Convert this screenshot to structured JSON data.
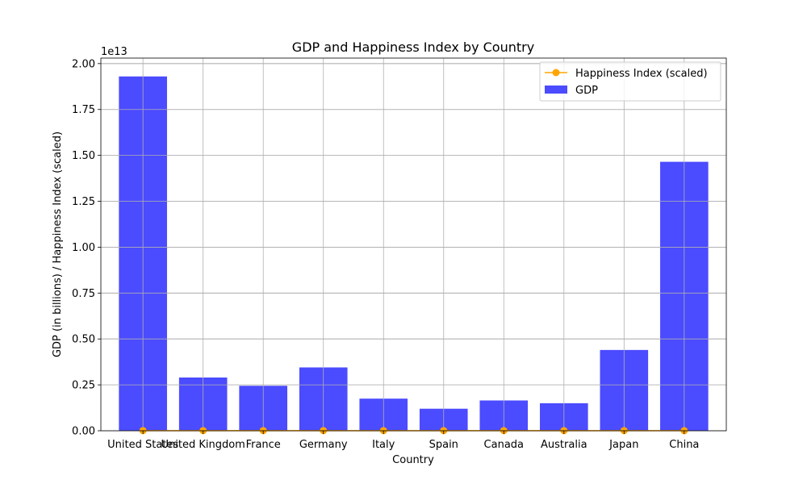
{
  "chart_data": {
    "type": "bar",
    "title": "GDP and Happiness Index by Country",
    "xlabel": "Country",
    "ylabel": "GDP (in billions) / Happiness Index (scaled)",
    "y_offset_text": "1e13",
    "categories": [
      "United States",
      "United Kingdom",
      "France",
      "Germany",
      "Italy",
      "Spain",
      "Canada",
      "Australia",
      "Japan",
      "China"
    ],
    "series": [
      {
        "name": "GDP",
        "kind": "bar",
        "color": "#4b4bff",
        "values": [
          19.3,
          2.9,
          2.45,
          3.45,
          1.75,
          1.2,
          1.65,
          1.5,
          4.4,
          14.65
        ]
      },
      {
        "name": "Happiness Index (scaled)",
        "kind": "line",
        "color": "#ffa500",
        "values": [
          0.007,
          0.007,
          0.007,
          0.007,
          0.006,
          0.006,
          0.007,
          0.007,
          0.006,
          0.005
        ]
      }
    ],
    "ylim": [
      0,
      20.3
    ],
    "yticks": [
      "0.00",
      "0.25",
      "0.50",
      "0.75",
      "1.00",
      "1.25",
      "1.50",
      "1.75",
      "2.00"
    ],
    "ytick_values": [
      0,
      2.5,
      5.0,
      7.5,
      10.0,
      12.5,
      15.0,
      17.5,
      20.0
    ],
    "y_unit_note": "values in units of 1e12",
    "grid": true,
    "legend": "top-right"
  }
}
